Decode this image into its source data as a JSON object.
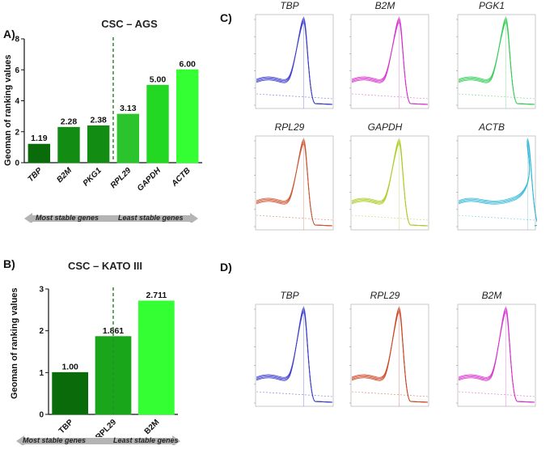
{
  "panels": {
    "A": "A)",
    "B": "B)",
    "C": "C)",
    "D": "D)"
  },
  "colors": {
    "c1": "#0a6b0a",
    "c2": "#128c12",
    "c3": "#1aa61a",
    "c4": "#2cc42c",
    "c5": "#22d822",
    "c6": "#33ff33",
    "arrow": "#b4b4b4",
    "divider": "#2e8b2e"
  },
  "chart_data": [
    {
      "type": "bar",
      "title": "CSC – AGS",
      "ylabel": "Geoman of ranking values",
      "xlabel": "",
      "categories": [
        "TBP",
        "B2M",
        "PKG1",
        "RPL29",
        "GAPDH",
        "ACTB"
      ],
      "values": [
        1.19,
        2.28,
        2.38,
        3.13,
        5.0,
        6.0
      ],
      "value_labels": [
        "1.19",
        "2.28",
        "2.38",
        "3.13",
        "5.00",
        "6.00"
      ],
      "ylim": [
        0,
        8
      ],
      "yticks": [
        "0",
        "2",
        "4",
        "6",
        "8"
      ],
      "most_stable_label": "Most stable genes",
      "least_stable_label": "Least stable genes"
    },
    {
      "type": "bar",
      "title": "CSC – KATO III",
      "ylabel": "Geoman of ranking values",
      "xlabel": "",
      "categories": [
        "TBP",
        "RPL29",
        "B2M"
      ],
      "values": [
        1.0,
        1.861,
        2.711
      ],
      "value_labels": [
        "1.00",
        "1.861",
        "2.711"
      ],
      "ylim": [
        0,
        3
      ],
      "yticks": [
        "0",
        "1",
        "2",
        "3"
      ],
      "most_stable_label": "Most stable genes",
      "least_stable_label": "Least stable genes"
    }
  ],
  "melt_curves_c": [
    {
      "gene": "TBP",
      "color": "#3a3acc"
    },
    {
      "gene": "B2M",
      "color": "#d633cc"
    },
    {
      "gene": "PGK1",
      "color": "#33cc55"
    },
    {
      "gene": "RPL29",
      "color": "#cc5533"
    },
    {
      "gene": "GAPDH",
      "color": "#aacc22"
    },
    {
      "gene": "ACTB",
      "color": "#33b8d6"
    }
  ],
  "melt_curves_d": [
    {
      "gene": "TBP",
      "color": "#3a3acc"
    },
    {
      "gene": "RPL29",
      "color": "#cc4422"
    },
    {
      "gene": "B2M",
      "color": "#d633cc"
    }
  ]
}
